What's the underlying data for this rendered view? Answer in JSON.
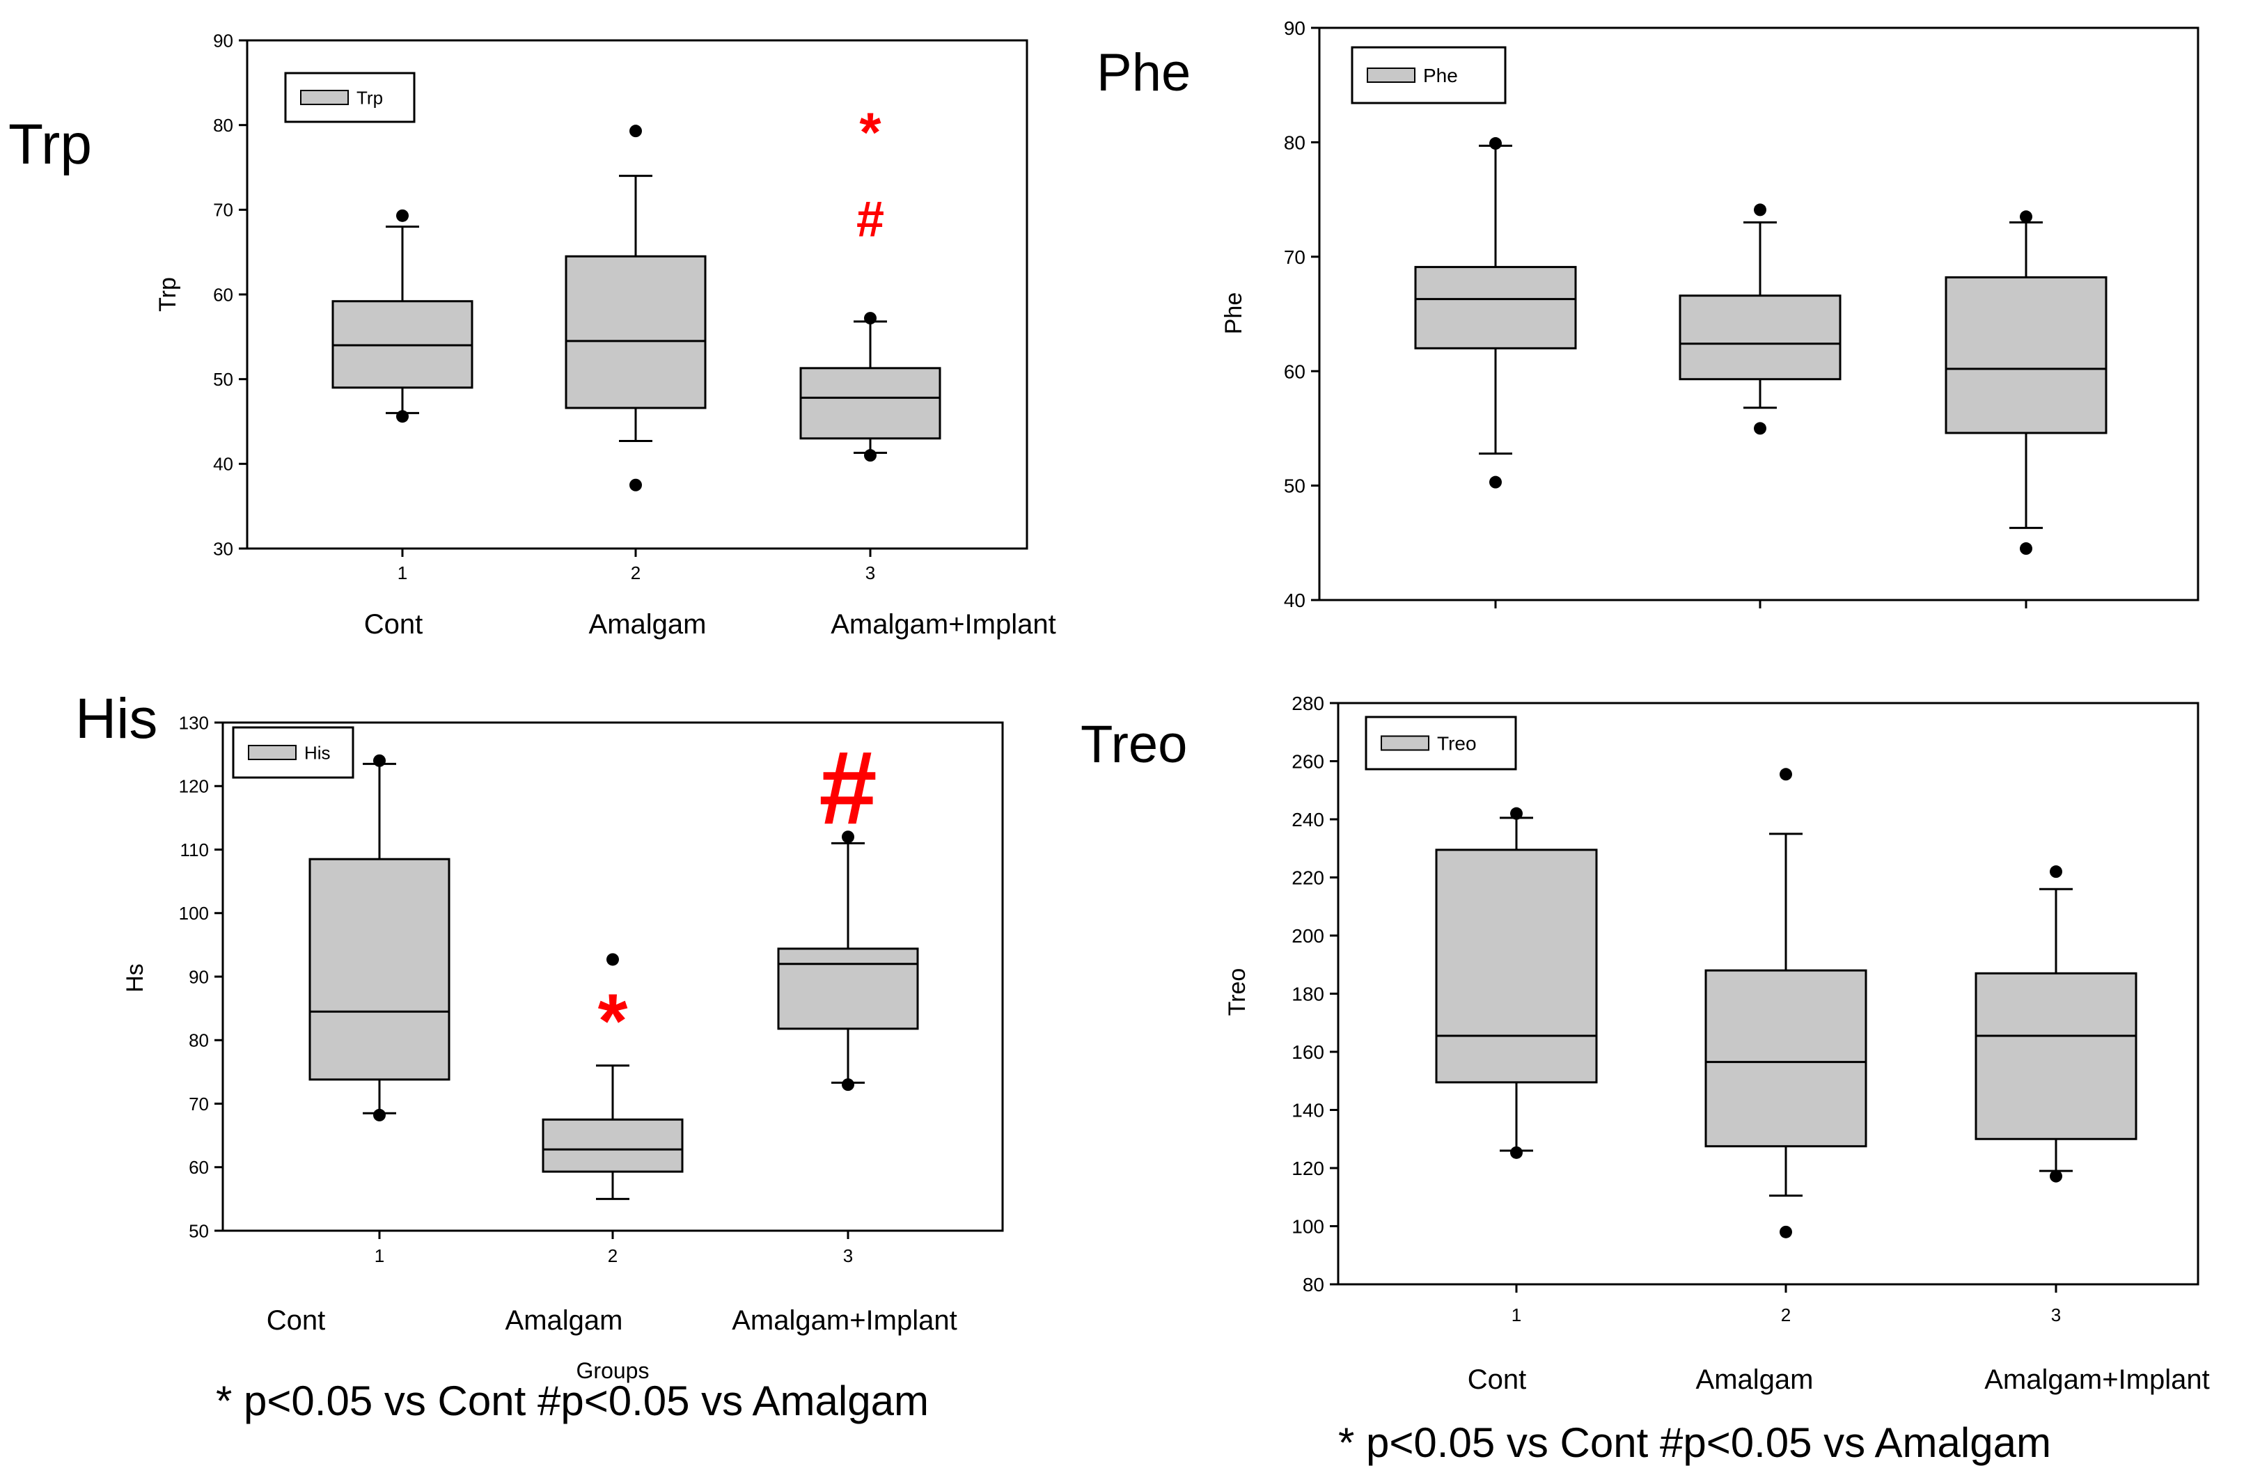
{
  "chart_data": [
    {
      "type": "box",
      "title": "Trp",
      "ylabel": "Trp",
      "xlabel": "",
      "legend": "Trp",
      "ylim": [
        30,
        90
      ],
      "yticks": [
        30,
        40,
        50,
        60,
        70,
        80,
        90
      ],
      "xticks": [
        "1",
        "2",
        "3"
      ],
      "categories": [
        "Cont",
        "Amalgam",
        "Amalgam+Implant"
      ],
      "boxes": [
        {
          "whisker_low": 46,
          "q1": 49,
          "median": 54,
          "q3": 59.2,
          "whisker_high": 68,
          "outliers": [
            45.6,
            69.3
          ]
        },
        {
          "whisker_low": 42.7,
          "q1": 46.6,
          "median": 54.5,
          "q3": 64.5,
          "whisker_high": 74,
          "outliers": [
            37.5,
            79.3
          ]
        },
        {
          "whisker_low": 41.3,
          "q1": 43,
          "median": 47.8,
          "q3": 51.3,
          "whisker_high": 56.8,
          "outliers": [
            41,
            57.2
          ]
        }
      ],
      "annotations": [
        {
          "category": 3,
          "text": "*",
          "y": 80.5
        },
        {
          "category": 3,
          "text": "#",
          "y": 69
        }
      ]
    },
    {
      "type": "box",
      "title": "Phe",
      "ylabel": "Phe",
      "xlabel": "",
      "legend": "Phe",
      "ylim": [
        40,
        90
      ],
      "yticks": [
        40,
        50,
        60,
        70,
        80,
        90
      ],
      "xticks": [
        "",
        "",
        ""
      ],
      "categories": [],
      "boxes": [
        {
          "whisker_low": 52.8,
          "q1": 62,
          "median": 66.3,
          "q3": 69.1,
          "whisker_high": 79.7,
          "outliers": [
            50.3,
            79.9
          ]
        },
        {
          "whisker_low": 56.8,
          "q1": 59.3,
          "median": 62.4,
          "q3": 66.6,
          "whisker_high": 73,
          "outliers": [
            55,
            74.1
          ]
        },
        {
          "whisker_low": 46.3,
          "q1": 54.6,
          "median": 60.2,
          "q3": 68.2,
          "whisker_high": 73,
          "outliers": [
            44.5,
            73.5
          ]
        }
      ],
      "annotations": []
    },
    {
      "type": "box",
      "title": "His",
      "ylabel": "Hs",
      "xlabel": "Groups",
      "legend": "His",
      "ylim": [
        50,
        130
      ],
      "yticks": [
        50,
        60,
        70,
        80,
        90,
        100,
        110,
        120,
        130
      ],
      "xticks": [
        "1",
        "2",
        "3"
      ],
      "categories": [
        "Cont",
        "Amalgam",
        "Amalgam+Implant"
      ],
      "boxes": [
        {
          "whisker_low": 68.5,
          "q1": 73.8,
          "median": 84.5,
          "q3": 108.5,
          "whisker_high": 123.5,
          "outliers": [
            68.2,
            124
          ]
        },
        {
          "whisker_low": 55,
          "q1": 59.3,
          "median": 62.8,
          "q3": 67.5,
          "whisker_high": 76,
          "outliers": [
            92.7
          ]
        },
        {
          "whisker_low": 73.3,
          "q1": 81.8,
          "median": 92,
          "q3": 94.4,
          "whisker_high": 111,
          "outliers": [
            73,
            112
          ]
        }
      ],
      "annotations": [
        {
          "category": 2,
          "text": "*",
          "y": 85.5
        },
        {
          "category": 3,
          "text": "#",
          "y": 120
        }
      ]
    },
    {
      "type": "box",
      "title": "Treo",
      "ylabel": "Treo",
      "xlabel": "",
      "legend": "Treo",
      "ylim": [
        80,
        280
      ],
      "yticks": [
        80,
        100,
        120,
        140,
        160,
        180,
        200,
        220,
        240,
        260,
        280
      ],
      "xticks": [
        "1",
        "2",
        "3"
      ],
      "categories": [
        "Cont",
        "Amalgam",
        "Amalgam+Implant"
      ],
      "boxes": [
        {
          "whisker_low": 126,
          "q1": 149.5,
          "median": 165.5,
          "q3": 229.5,
          "whisker_high": 240.5,
          "outliers": [
            125.3,
            242
          ]
        },
        {
          "whisker_low": 110.5,
          "q1": 127.5,
          "median": 156.5,
          "q3": 188,
          "whisker_high": 235,
          "outliers": [
            98,
            255.5
          ]
        },
        {
          "whisker_low": 119,
          "q1": 130,
          "median": 165.5,
          "q3": 187,
          "whisker_high": 216,
          "outliers": [
            117.2,
            222
          ]
        }
      ],
      "annotations": []
    }
  ],
  "footnotes": {
    "left": "* p<0.05 vs Cont #p<0.05 vs Amalgam",
    "right": "* p<0.05 vs Cont #p<0.05 vs Amalgam"
  },
  "colors": {
    "box_fill": "#c8c8c8",
    "annotation": "#ff0000",
    "ink": "#000000"
  }
}
